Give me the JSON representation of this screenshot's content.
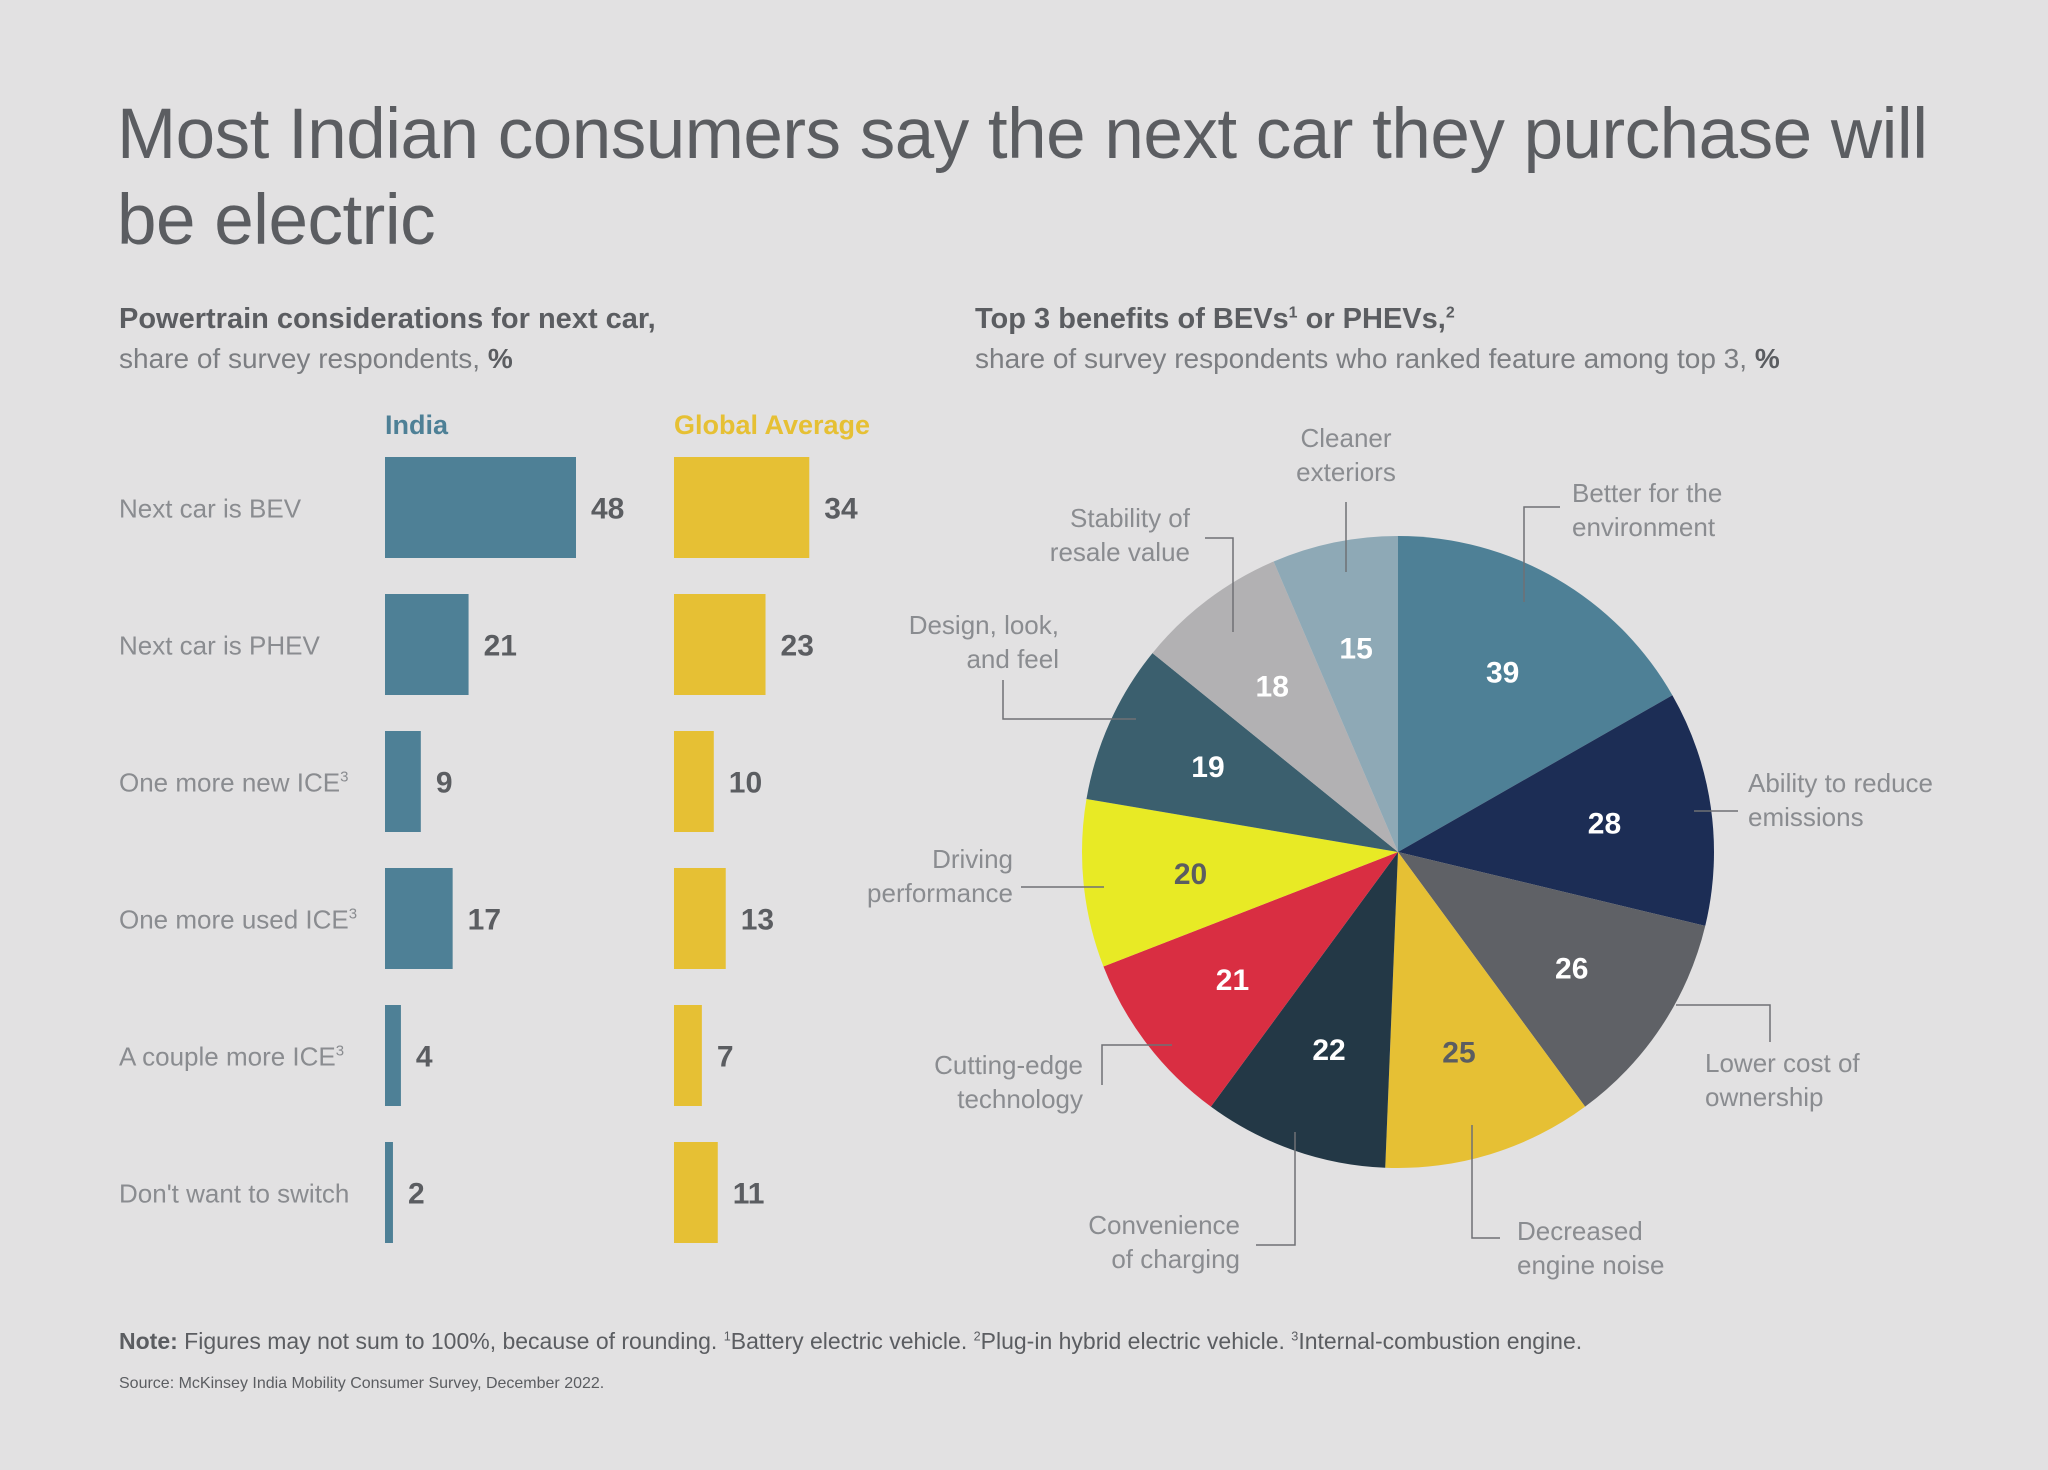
{
  "title": "Most Indian consumers say the next car they purchase will be electric",
  "note": {
    "label": "Note:",
    "text_main": " Figures may not sum to 100%, because of rounding. ",
    "fn1": "1",
    "fn1_text": "Battery electric vehicle. ",
    "fn2": "2",
    "fn2_text": "Plug-in hybrid electric vehicle. ",
    "fn3": "3",
    "fn3_text": "Internal-combustion engine."
  },
  "source": "Source: McKinsey India Mobility Consumer Survey, December 2022.",
  "colors": {
    "india": "#4e8096",
    "global": "#e6c034",
    "label_text": "#8a8c90",
    "value_text": "#5b5d61"
  },
  "chart_data": [
    {
      "type": "bar",
      "title": "Powertrain considerations for next car,",
      "subtitle": "share of survey respondents,",
      "subtitle_unit": "%",
      "categories": [
        {
          "label": "Next car is BEV",
          "sup": ""
        },
        {
          "label": "Next car is PHEV",
          "sup": ""
        },
        {
          "label": "One more new ICE",
          "sup": "3"
        },
        {
          "label": "One more used ICE",
          "sup": "3"
        },
        {
          "label": "A couple more ICE",
          "sup": "3"
        },
        {
          "label": "Don't want to switch",
          "sup": ""
        }
      ],
      "series": [
        {
          "name": "India",
          "color": "#4e8096",
          "values": [
            48,
            21,
            9,
            17,
            4,
            2
          ]
        },
        {
          "name": "Global Average",
          "color": "#e6c034",
          "values": [
            34,
            23,
            10,
            13,
            7,
            11
          ]
        }
      ],
      "orientation": "horizontal"
    },
    {
      "type": "pie",
      "title_a": "Top 3 benefits of BEVs",
      "title_sup1": "1",
      "title_b": " or PHEVs,",
      "title_sup2": "2",
      "subtitle": "share of survey respondents who ranked feature among top 3,",
      "subtitle_unit": "%",
      "slices": [
        {
          "label": "Better for the environment",
          "lines": [
            "Better for the",
            "environment"
          ],
          "value": 39,
          "color": "#4e8096",
          "value_color": "#ffffff"
        },
        {
          "label": "Ability to reduce emissions",
          "lines": [
            "Ability to reduce",
            "emissions"
          ],
          "value": 28,
          "color": "#1c2d55",
          "value_color": "#ffffff"
        },
        {
          "label": "Lower cost of ownership",
          "lines": [
            "Lower cost of",
            "ownership"
          ],
          "value": 26,
          "color": "#5f6166",
          "value_color": "#ffffff"
        },
        {
          "label": "Decreased engine noise",
          "lines": [
            "Decreased",
            "engine noise"
          ],
          "value": 25,
          "color": "#e6c034",
          "value_color": "#5b5d61"
        },
        {
          "label": "Convenience of charging",
          "lines": [
            "Convenience",
            "of charging"
          ],
          "value": 22,
          "color": "#233846",
          "value_color": "#ffffff"
        },
        {
          "label": "Cutting-edge technology",
          "lines": [
            "Cutting-edge",
            "technology"
          ],
          "value": 21,
          "color": "#d92e42",
          "value_color": "#ffffff"
        },
        {
          "label": "Driving performance",
          "lines": [
            "Driving",
            "performance"
          ],
          "value": 20,
          "color": "#e8ea25",
          "value_color": "#5b5d61"
        },
        {
          "label": "Design, look, and feel",
          "lines": [
            "Design, look,",
            "and feel"
          ],
          "value": 19,
          "color": "#3b5f6e",
          "value_color": "#ffffff"
        },
        {
          "label": "Stability of resale value",
          "lines": [
            "Stability of",
            "resale value"
          ],
          "value": 18,
          "color": "#b2b1b3",
          "value_color": "#ffffff"
        },
        {
          "label": "Cleaner exteriors",
          "lines": [
            "Cleaner",
            "exteriors"
          ],
          "value": 15,
          "color": "#8ea9b6",
          "value_color": "#ffffff"
        }
      ]
    }
  ]
}
